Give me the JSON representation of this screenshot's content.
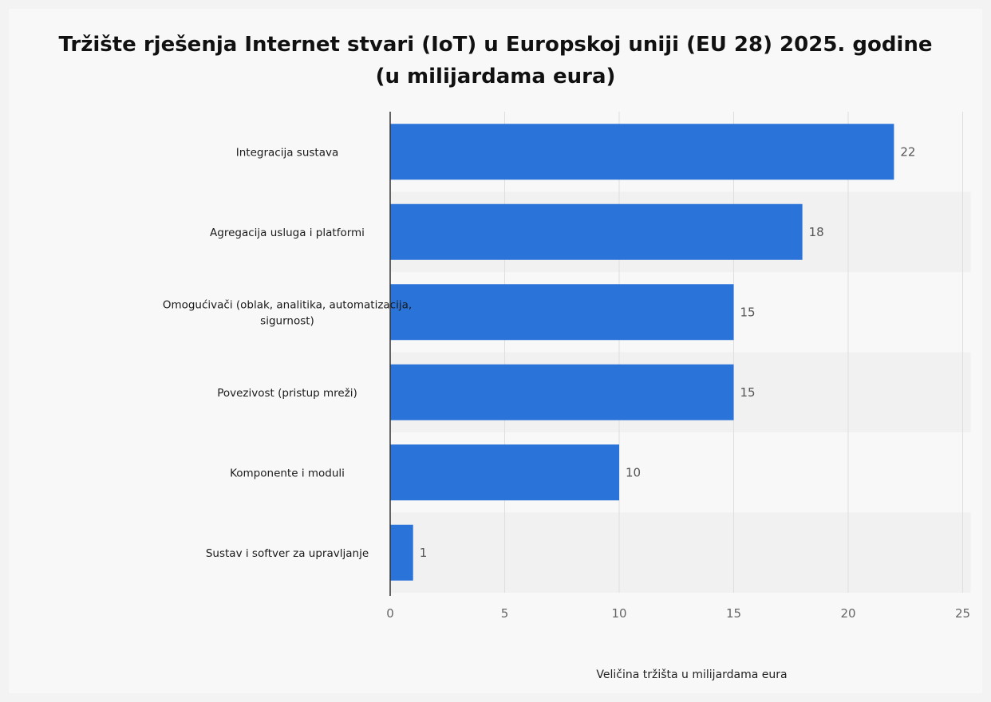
{
  "title_line1": "Tržište rješenja Internet stvari (IoT) u Europskoj uniji (EU 28) 2025. godine",
  "title_line2": "(u milijardama eura)",
  "chart_data": {
    "type": "bar",
    "orientation": "horizontal",
    "title": "Tržište rješenja Internet stvari (IoT) u Europskoj uniji (EU 28) 2025. godine (u milijardama eura)",
    "xlabel": "Veličina tržišta u milijardama eura",
    "ylabel": "",
    "categories": [
      [
        "Integracija sustava"
      ],
      [
        "Agregacija usluga i platformi"
      ],
      [
        "Omogućivači (oblak, analitika, automatizacija,",
        "sigurnost)"
      ],
      [
        "Povezivost (pristup mreži)"
      ],
      [
        "Komponente i moduli"
      ],
      [
        "Sustav i softver za upravljanje"
      ]
    ],
    "values": [
      22,
      18,
      15,
      15,
      10,
      1
    ],
    "data_labels": [
      "22",
      "18",
      "15",
      "15",
      "10",
      "1"
    ],
    "xlim": [
      0,
      25
    ],
    "xticks": [
      "0",
      "5",
      "10",
      "15",
      "20",
      "25"
    ],
    "grid": true,
    "bar_color": "#2a73d9"
  }
}
